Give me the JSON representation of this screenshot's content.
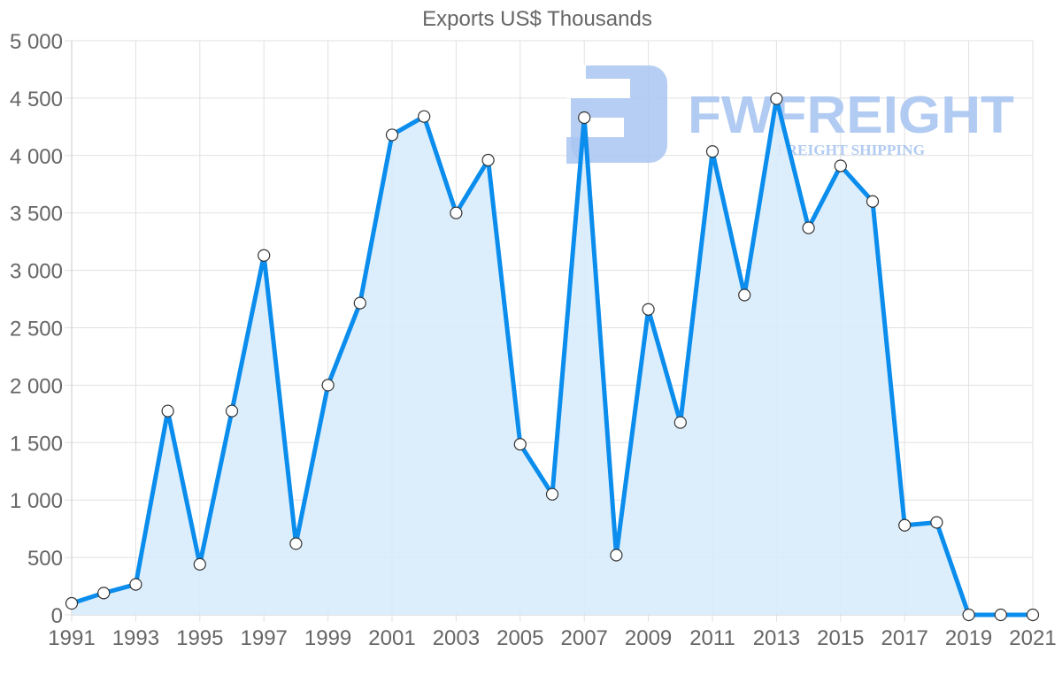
{
  "chart_data": {
    "type": "area",
    "title": "Exports US$ Thousands",
    "xlabel": "",
    "ylabel": "",
    "x": [
      1991,
      1992,
      1993,
      1994,
      1995,
      1996,
      1997,
      1998,
      1999,
      2000,
      2001,
      2002,
      2003,
      2004,
      2005,
      2006,
      2007,
      2008,
      2009,
      2010,
      2011,
      2012,
      2013,
      2014,
      2015,
      2016,
      2017,
      2018,
      2019,
      2020,
      2021
    ],
    "series": [
      {
        "name": "Exports US$ Thousands",
        "values": [
          100,
          190,
          265,
          1775,
          440,
          1775,
          3130,
          620,
          2000,
          2715,
          4180,
          4340,
          3500,
          3960,
          1485,
          1050,
          4330,
          520,
          2660,
          1675,
          4035,
          2785,
          4495,
          3370,
          3910,
          3600,
          780,
          805,
          0,
          0,
          0
        ]
      }
    ],
    "xticks": [
      "1991",
      "1993",
      "1995",
      "1997",
      "1999",
      "2001",
      "2003",
      "2005",
      "2007",
      "2009",
      "2011",
      "2013",
      "2015",
      "2017",
      "2019",
      "2021"
    ],
    "yticks": [
      0,
      500,
      1000,
      1500,
      2000,
      2500,
      3000,
      3500,
      4000,
      4500,
      5000
    ],
    "ytick_labels": [
      "0",
      "500",
      "1 000",
      "1 500",
      "2 000",
      "2 500",
      "3 000",
      "3 500",
      "4 000",
      "4 500",
      "5 000"
    ],
    "ylim": [
      0,
      5000
    ],
    "xlim": [
      1991,
      2021
    ],
    "grid": true,
    "legend": "none",
    "colors": {
      "line": "#0b8ded",
      "fill": "#d8ecfc",
      "point_fill": "#ffffff",
      "point_stroke": "#333333",
      "grid": "#e1e1e1",
      "axis": "#c8c8c8",
      "tick_text": "#666666"
    }
  },
  "watermark": {
    "brand": "FWFREIGHT",
    "tagline": "FREIGHT SHIPPING",
    "color": "#a9c6f1"
  }
}
